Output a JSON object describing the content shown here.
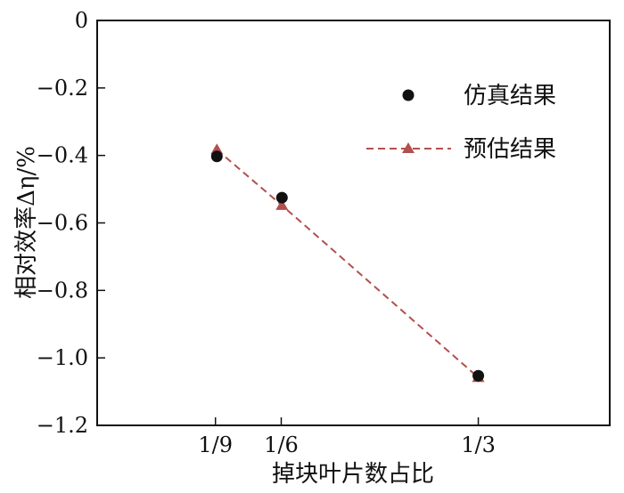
{
  "chart_data": {
    "type": "scatter",
    "title": "",
    "xlabel": "掉块叶片数占比",
    "ylabel": "相对效率Δη/%",
    "x_ticks": [
      {
        "value": 0.1111,
        "label": "1/9"
      },
      {
        "value": 0.1667,
        "label": "1/6"
      },
      {
        "value": 0.3333,
        "label": "1/3"
      }
    ],
    "y_ticks": [
      {
        "value": 0,
        "label": "0"
      },
      {
        "value": -0.2,
        "label": "−0.2"
      },
      {
        "value": -0.4,
        "label": "−0.4"
      },
      {
        "value": -0.6,
        "label": "−0.6"
      },
      {
        "value": -0.8,
        "label": "−0.8"
      },
      {
        "value": -1.0,
        "label": "−1.0"
      },
      {
        "value": -1.2,
        "label": "−1.2"
      }
    ],
    "xlim": [
      0.0111,
      0.4444
    ],
    "ylim": [
      -1.2,
      0
    ],
    "grid": false,
    "legend_position": "top-right",
    "series": [
      {
        "name": "仿真结果",
        "style": "markers",
        "marker": "circle",
        "color": "#111111",
        "points": [
          {
            "x": 0.1123,
            "y": -0.403
          },
          {
            "x": 0.1673,
            "y": -0.525
          },
          {
            "x": 0.3333,
            "y": -1.053
          }
        ]
      },
      {
        "name": "预估结果",
        "style": "dashed-line-with-markers",
        "marker": "triangle",
        "color": "#b2504f",
        "points": [
          {
            "x": 0.1123,
            "y": -0.383
          },
          {
            "x": 0.1673,
            "y": -0.548
          },
          {
            "x": 0.3333,
            "y": -1.058
          }
        ]
      }
    ]
  }
}
